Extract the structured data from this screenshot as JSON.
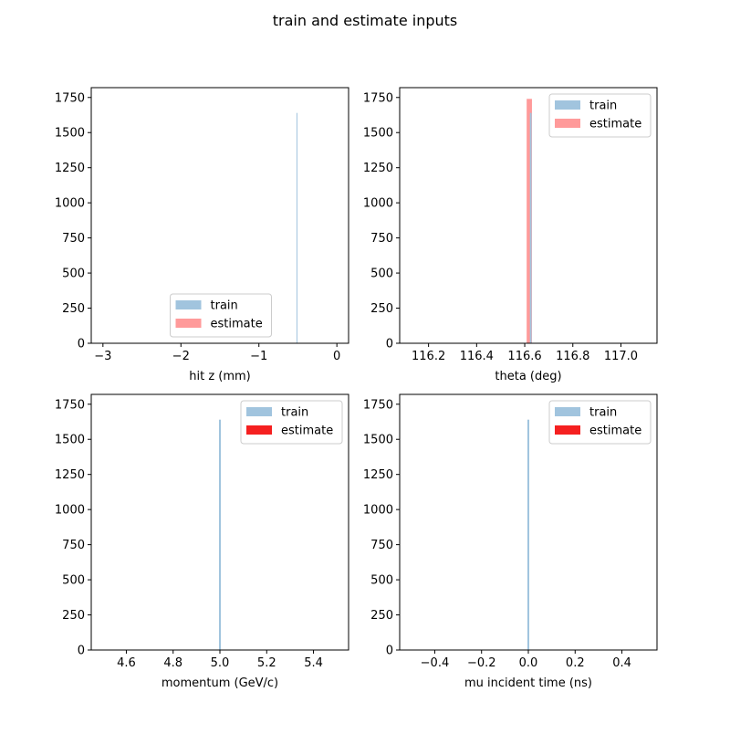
{
  "figure": {
    "suptitle": "train and estimate inputs"
  },
  "colors": {
    "train": "#a1c4de",
    "estimate_light": "#ff9a9a",
    "estimate_solid": "#f52020"
  },
  "chart_data": [
    {
      "type": "bar",
      "title": "",
      "xlabel": "hit z (mm)",
      "ylabel": "",
      "xlim": [
        -3.15,
        0.15
      ],
      "ylim": [
        0,
        1820
      ],
      "xticks": [
        -3,
        -2,
        -1,
        0
      ],
      "xtick_labels": [
        "−3",
        "−2",
        "−1",
        "0"
      ],
      "yticks": [
        0,
        250,
        500,
        750,
        1000,
        1250,
        1500,
        1750
      ],
      "ytick_labels": [
        "0",
        "250",
        "500",
        "750",
        "1000",
        "1250",
        "1500",
        "1750"
      ],
      "legend": {
        "position": "lower-center",
        "entries": [
          "train",
          "estimate"
        ],
        "estimate_color": "#ff9a9a"
      },
      "series": [
        {
          "name": "train",
          "color": "#a1c4de",
          "bars": [
            {
              "x": -0.515,
              "width": 0.006,
              "value": 1640
            }
          ]
        },
        {
          "name": "estimate",
          "color": "#ff9a9a",
          "bars": []
        }
      ]
    },
    {
      "type": "bar",
      "title": "",
      "xlabel": "theta (deg)",
      "ylabel": "",
      "xlim": [
        116.08,
        117.15
      ],
      "ylim": [
        0,
        1820
      ],
      "xticks": [
        116.2,
        116.4,
        116.6,
        116.8,
        117.0
      ],
      "xtick_labels": [
        "116.2",
        "116.4",
        "116.6",
        "116.8",
        "117.0"
      ],
      "yticks": [
        0,
        250,
        500,
        750,
        1000,
        1250,
        1500,
        1750
      ],
      "ytick_labels": [
        "0",
        "250",
        "500",
        "750",
        "1000",
        "1250",
        "1500",
        "1750"
      ],
      "legend": {
        "position": "upper-right",
        "entries": [
          "train",
          "estimate"
        ],
        "estimate_color": "#ff9a9a"
      },
      "series": [
        {
          "name": "estimate",
          "color": "#ff9a9a",
          "bars": [
            {
              "x": 116.619,
              "width": 0.022,
              "value": 1740
            }
          ]
        },
        {
          "name": "train",
          "color": "#a1c4de",
          "bars": [
            {
              "x": 116.625,
              "width": 0.007,
              "value": 1640
            }
          ]
        }
      ]
    },
    {
      "type": "bar",
      "title": "",
      "xlabel": "momentum (GeV/c)",
      "ylabel": "",
      "xlim": [
        4.45,
        5.55
      ],
      "ylim": [
        0,
        1820
      ],
      "xticks": [
        4.6,
        4.8,
        5.0,
        5.2,
        5.4
      ],
      "xtick_labels": [
        "4.6",
        "4.8",
        "5.0",
        "5.2",
        "5.4"
      ],
      "yticks": [
        0,
        250,
        500,
        750,
        1000,
        1250,
        1500,
        1750
      ],
      "ytick_labels": [
        "0",
        "250",
        "500",
        "750",
        "1000",
        "1250",
        "1500",
        "1750"
      ],
      "legend": {
        "position": "upper-right",
        "entries": [
          "train",
          "estimate"
        ],
        "estimate_color": "#f52020"
      },
      "series": [
        {
          "name": "train",
          "color": "#a1c4de",
          "bars": [
            {
              "x": 5.0,
              "width": 0.008,
              "value": 1640
            }
          ]
        },
        {
          "name": "estimate",
          "color": "#f52020",
          "bars": []
        }
      ]
    },
    {
      "type": "bar",
      "title": "",
      "xlabel": "mu incident time (ns)",
      "ylabel": "",
      "xlim": [
        -0.55,
        0.55
      ],
      "ylim": [
        0,
        1820
      ],
      "xticks": [
        -0.4,
        -0.2,
        0.0,
        0.2,
        0.4
      ],
      "xtick_labels": [
        "−0.4",
        "−0.2",
        "0.0",
        "0.2",
        "0.4"
      ],
      "yticks": [
        0,
        250,
        500,
        750,
        1000,
        1250,
        1500,
        1750
      ],
      "ytick_labels": [
        "0",
        "250",
        "500",
        "750",
        "1000",
        "1250",
        "1500",
        "1750"
      ],
      "legend": {
        "position": "upper-right",
        "entries": [
          "train",
          "estimate"
        ],
        "estimate_color": "#f52020"
      },
      "series": [
        {
          "name": "train",
          "color": "#a1c4de",
          "bars": [
            {
              "x": 0.0,
              "width": 0.008,
              "value": 1640
            }
          ]
        },
        {
          "name": "estimate",
          "color": "#f52020",
          "bars": []
        }
      ]
    }
  ]
}
